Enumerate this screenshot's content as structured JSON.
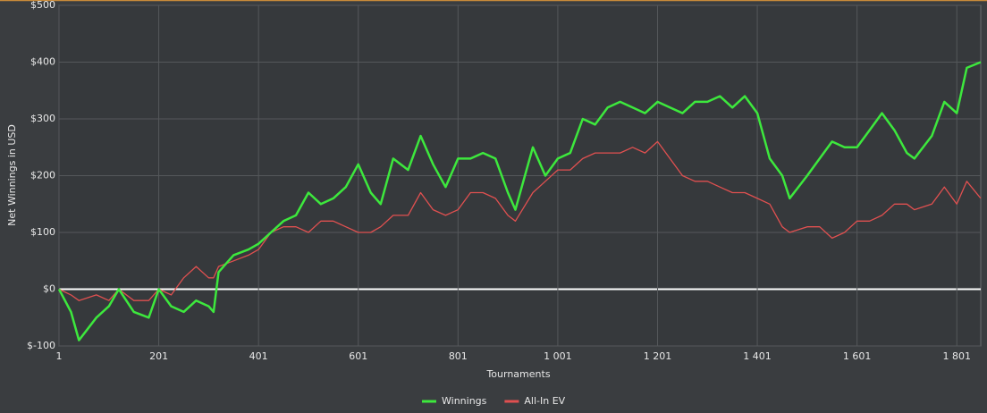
{
  "chart_data": {
    "type": "line",
    "x_label": "Tournaments",
    "y_label": "Net Winnings in USD",
    "x": [
      1,
      25,
      41,
      76,
      101,
      121,
      151,
      181,
      201,
      226,
      251,
      276,
      301,
      311,
      321,
      351,
      381,
      401,
      426,
      451,
      476,
      501,
      526,
      551,
      576,
      601,
      626,
      646,
      671,
      701,
      726,
      751,
      776,
      801,
      826,
      851,
      876,
      901,
      916,
      951,
      976,
      1001,
      1026,
      1051,
      1076,
      1101,
      1126,
      1151,
      1176,
      1201,
      1226,
      1251,
      1276,
      1301,
      1326,
      1351,
      1376,
      1401,
      1426,
      1451,
      1466,
      1501,
      1526,
      1551,
      1576,
      1601,
      1626,
      1651,
      1676,
      1701,
      1716,
      1751,
      1776,
      1801,
      1821,
      1849
    ],
    "series": [
      {
        "name": "Winnings",
        "color": "#3de83d",
        "values": [
          0,
          -40,
          -90,
          -50,
          -30,
          0,
          -40,
          -50,
          0,
          -30,
          -40,
          -20,
          -30,
          -40,
          30,
          60,
          70,
          80,
          100,
          120,
          130,
          170,
          150,
          160,
          180,
          220,
          170,
          150,
          230,
          210,
          270,
          220,
          180,
          230,
          230,
          240,
          230,
          170,
          140,
          250,
          200,
          230,
          240,
          300,
          290,
          320,
          330,
          320,
          310,
          330,
          320,
          310,
          330,
          330,
          340,
          320,
          340,
          310,
          230,
          200,
          160,
          200,
          230,
          260,
          250,
          250,
          280,
          310,
          280,
          240,
          230,
          270,
          330,
          310,
          390,
          400
        ]
      },
      {
        "name": "All-In EV",
        "color": "#e05050",
        "values": [
          0,
          -10,
          -20,
          -10,
          -20,
          0,
          -20,
          -20,
          0,
          -10,
          20,
          40,
          20,
          20,
          40,
          50,
          60,
          70,
          100,
          110,
          110,
          100,
          120,
          120,
          110,
          100,
          100,
          110,
          130,
          130,
          170,
          140,
          130,
          140,
          170,
          170,
          160,
          130,
          120,
          170,
          190,
          210,
          210,
          230,
          240,
          240,
          240,
          250,
          240,
          260,
          230,
          200,
          190,
          190,
          180,
          170,
          170,
          160,
          150,
          110,
          100,
          110,
          110,
          90,
          100,
          120,
          120,
          130,
          150,
          150,
          140,
          150,
          180,
          150,
          190,
          160
        ]
      }
    ],
    "xlim": [
      1,
      1849
    ],
    "ylim": [
      -100,
      500
    ],
    "xticks": [
      1,
      201,
      401,
      601,
      801,
      {
        "value": 1001,
        "label": "1 001"
      },
      {
        "value": 1201,
        "label": "1 201"
      },
      {
        "value": 1401,
        "label": "1 401"
      },
      {
        "value": 1601,
        "label": "1 601"
      },
      {
        "value": 1801,
        "label": "1 801"
      }
    ],
    "yticks": [
      {
        "value": -100,
        "label": "$-100"
      },
      {
        "value": 0,
        "label": "$0"
      },
      {
        "value": 100,
        "label": "$100"
      },
      {
        "value": 200,
        "label": "$200"
      },
      {
        "value": 300,
        "label": "$300"
      },
      {
        "value": 400,
        "label": "$400"
      },
      {
        "value": 500,
        "label": "$500"
      }
    ],
    "grid": true,
    "legend": "bottom"
  }
}
